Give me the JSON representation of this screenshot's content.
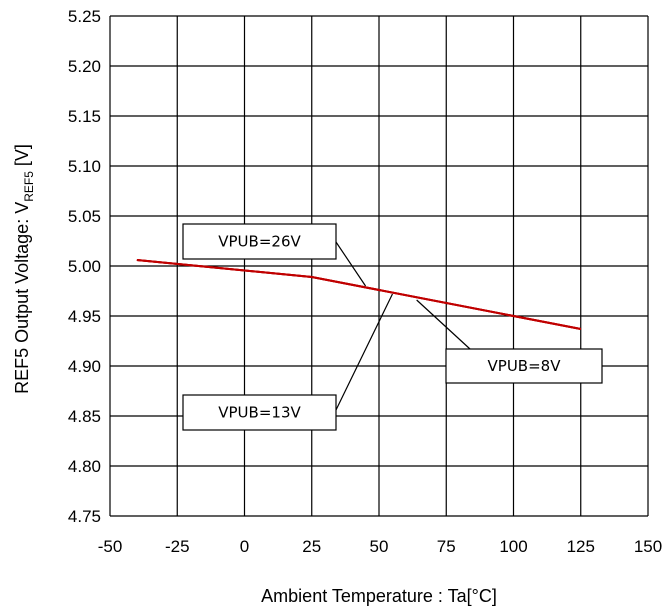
{
  "chart_data": {
    "type": "line",
    "xlabel": "Ambient Temperature : Ta[°C]",
    "ylabel": {
      "prefix": "REF5 Output Voltage: V",
      "subscript": "REF5",
      "suffix": " [V]"
    },
    "xlim": [
      -50,
      150
    ],
    "ylim": [
      4.75,
      5.25
    ],
    "x_ticks": [
      -50,
      -25,
      0,
      25,
      50,
      75,
      100,
      125,
      150
    ],
    "x_tick_labels": [
      "-50",
      "-25",
      "0",
      "25",
      "50",
      "75",
      "100",
      "125",
      "150"
    ],
    "y_ticks": [
      4.75,
      4.8,
      4.85,
      4.9,
      4.95,
      5.0,
      5.05,
      5.1,
      5.15,
      5.2,
      5.25
    ],
    "y_tick_labels": [
      "4.75",
      "4.80",
      "4.85",
      "4.90",
      "4.95",
      "5.00",
      "5.05",
      "5.10",
      "5.15",
      "5.20",
      "5.25"
    ],
    "grid": true,
    "series": [
      {
        "name": "VPUB=26V",
        "color": "#c00000",
        "x": [
          -40,
          25,
          125
        ],
        "y": [
          5.006,
          4.989,
          4.937
        ]
      },
      {
        "name": "VPUB=13V",
        "color": "#c00000",
        "x": [
          -40,
          25,
          125
        ],
        "y": [
          5.006,
          4.989,
          4.937
        ]
      },
      {
        "name": "VPUB=8V",
        "color": "#c00000",
        "x": [
          -40,
          25,
          125
        ],
        "y": [
          5.006,
          4.989,
          4.937
        ]
      }
    ],
    "annotations": [
      {
        "text": "VPUB=26V",
        "series": "VPUB=26V",
        "points_to": [
          45,
          4.98
        ]
      },
      {
        "text": "VPUB=13V",
        "series": "VPUB=13V",
        "points_to": [
          55,
          4.972
        ]
      },
      {
        "text": "VPUB=8V",
        "series": "VPUB=8V",
        "points_to": [
          64,
          4.966
        ]
      }
    ]
  }
}
